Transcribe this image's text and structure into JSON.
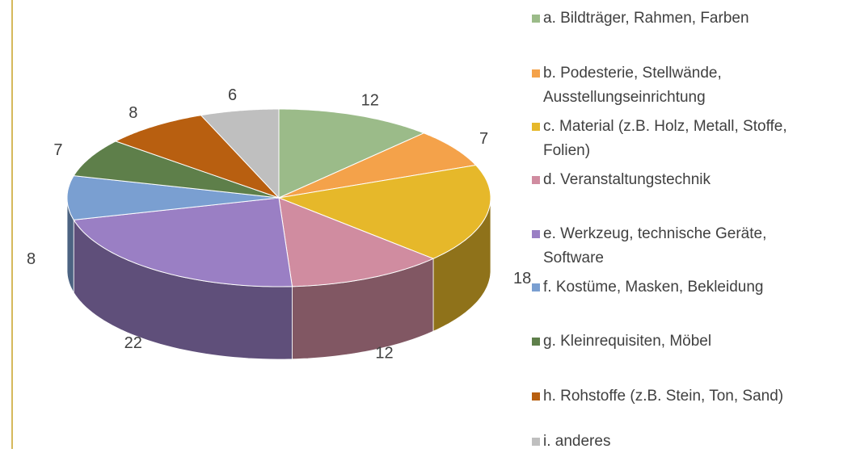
{
  "chart_data": {
    "type": "pie3d",
    "categories": [
      "a. Bildträger, Rahmen, Farben",
      "b. Podesterie, Stellwände, Ausstellungseinrichtung",
      "c. Material (z.B. Holz, Metall, Stoffe, Folien)",
      "d. Veranstaltungstechnik",
      "e. Werkzeug, technische Geräte, Software",
      "f. Kostüme, Masken, Bekleidung",
      "g. Kleinrequisiten, Möbel",
      "h. Rohstoffe (z.B. Stein, Ton, Sand)",
      "i. anderes"
    ],
    "values": [
      12,
      7,
      18,
      12,
      22,
      8,
      7,
      8,
      6
    ],
    "colors": [
      "#9bbb89",
      "#f4a24a",
      "#e6b82a",
      "#d08ca0",
      "#9a7fc4",
      "#7a9fd1",
      "#5e7f4a",
      "#b85f10",
      "#bfbfbf"
    ],
    "legend": "right"
  }
}
